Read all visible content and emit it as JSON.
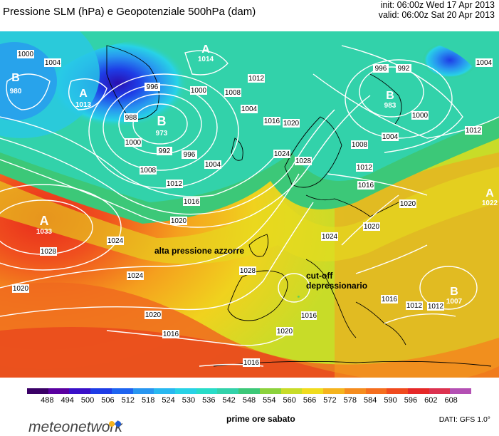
{
  "header": {
    "title": "Pressione SLM (hPa) e Geopotenziale 500hPa (dam)",
    "init": "init: 06:00z Wed 17 Apr 2013",
    "valid": "valid: 06:00z Sat 20 Apr 2013"
  },
  "map": {
    "annotations": {
      "azores_high": "alta pressione azzorre",
      "cutoff_line1": "cut-off",
      "cutoff_line2": "depressionario"
    },
    "pressure_centers": [
      {
        "type": "B",
        "value": "980"
      },
      {
        "type": "A",
        "value": "1013"
      },
      {
        "type": "A",
        "value": "1014"
      },
      {
        "type": "B",
        "value": "973"
      },
      {
        "type": "B",
        "value": "983"
      },
      {
        "type": "A",
        "value": "1033"
      },
      {
        "type": "A",
        "value": "1022"
      },
      {
        "type": "B",
        "value": "1007"
      }
    ],
    "isobar_labels": [
      "1000",
      "1004",
      "996",
      "1000",
      "1008",
      "1012",
      "1004",
      "1016",
      "1020",
      "1024",
      "1028",
      "988",
      "1000",
      "992",
      "996",
      "1004",
      "1008",
      "1012",
      "1016",
      "1020",
      "1024",
      "1028",
      "1024",
      "1020",
      "1020",
      "1016",
      "1016",
      "1028",
      "1020",
      "1016",
      "1012",
      "1016",
      "996",
      "992",
      "1004",
      "1000",
      "1004",
      "1008",
      "1012",
      "1012",
      "1020",
      "1020",
      "1024",
      "1016",
      "1012"
    ]
  },
  "colorbar": {
    "ticks": [
      "488",
      "494",
      "500",
      "506",
      "512",
      "518",
      "524",
      "530",
      "536",
      "542",
      "548",
      "554",
      "560",
      "566",
      "572",
      "578",
      "584",
      "590",
      "596",
      "602",
      "608"
    ],
    "colors": [
      "#3a0066",
      "#5a00a0",
      "#3a10c8",
      "#1e3ce6",
      "#1e64f0",
      "#2896f0",
      "#28b8f0",
      "#28d2e6",
      "#28dcc8",
      "#32d2aa",
      "#3cc878",
      "#8cd23c",
      "#c8dc28",
      "#f0dc1e",
      "#f5b41e",
      "#f58c1e",
      "#f56e1e",
      "#f04a1e",
      "#e62828",
      "#dc3250",
      "#b450b4"
    ]
  },
  "footer": {
    "logo": "meteonetwork",
    "caption": "prime ore sabato",
    "source": "DATI: GFS 1.0°"
  }
}
